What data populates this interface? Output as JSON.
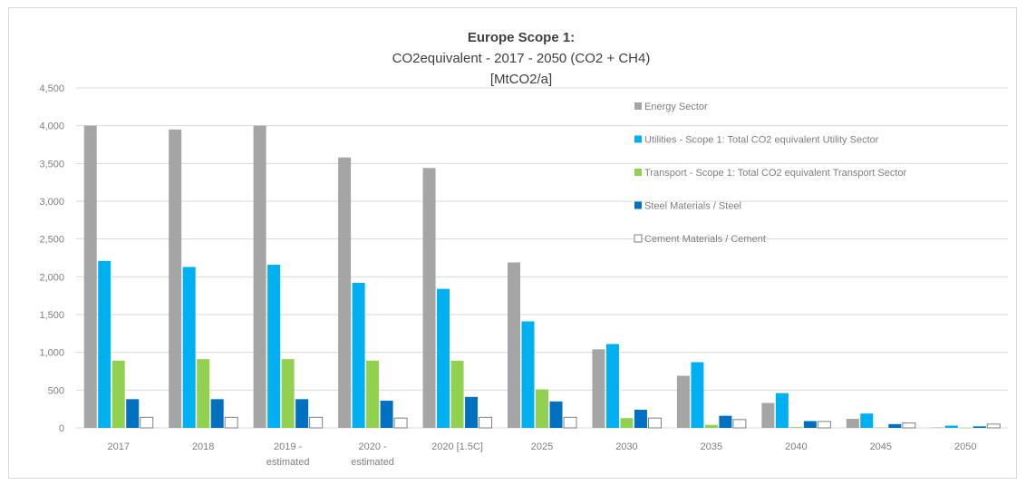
{
  "chart_data": {
    "type": "bar",
    "title": "Europe Scope 1:",
    "subtitle": "CO2equivalent - 2017 - 2050 (CO2 + CH4)",
    "unit_label": "[MtCO2/a]",
    "categories": [
      [
        "2017"
      ],
      [
        "2018"
      ],
      [
        "2019 -",
        "estimated"
      ],
      [
        "2020 -",
        "estimated"
      ],
      [
        "2020 [1.5C]"
      ],
      [
        "2025"
      ],
      [
        "2030"
      ],
      [
        "2035"
      ],
      [
        "2040"
      ],
      [
        "2045"
      ],
      [
        "2050"
      ]
    ],
    "ylim": [
      0,
      4500
    ],
    "yticks": [
      "0",
      "500",
      "1,000",
      "1,500",
      "2,000",
      "2,500",
      "3,000",
      "3,500",
      "4,000",
      "4,500"
    ],
    "ytick_values": [
      0,
      500,
      1000,
      1500,
      2000,
      2500,
      3000,
      3500,
      4000,
      4500
    ],
    "grid": true,
    "legend_position": "top-right",
    "series": [
      {
        "name": "Energy Sector",
        "color": "#a5a5a5",
        "values": [
          4000,
          3950,
          4000,
          3580,
          3440,
          2190,
          1040,
          690,
          330,
          120,
          5
        ]
      },
      {
        "name": "Utilities - Scope 1: Total CO2 equivalent Utility Sector",
        "color": "#00b0f0",
        "values": [
          2210,
          2130,
          2160,
          1920,
          1840,
          1410,
          1110,
          870,
          460,
          190,
          30
        ]
      },
      {
        "name": "Transport - Scope 1: Total CO2 equivalent Transport Sector",
        "color": "#92d050",
        "values": [
          890,
          910,
          910,
          890,
          890,
          510,
          130,
          40,
          10,
          5,
          2
        ]
      },
      {
        "name": "Steel Materials / Steel",
        "color": "#0070c0",
        "values": [
          380,
          380,
          380,
          360,
          410,
          350,
          240,
          160,
          90,
          50,
          20
        ]
      },
      {
        "name": "Cement Materials / Cement",
        "color": "#ffffff",
        "stroke": "#7f7f7f",
        "values": [
          140,
          140,
          140,
          130,
          140,
          140,
          130,
          110,
          85,
          65,
          50
        ]
      }
    ]
  }
}
